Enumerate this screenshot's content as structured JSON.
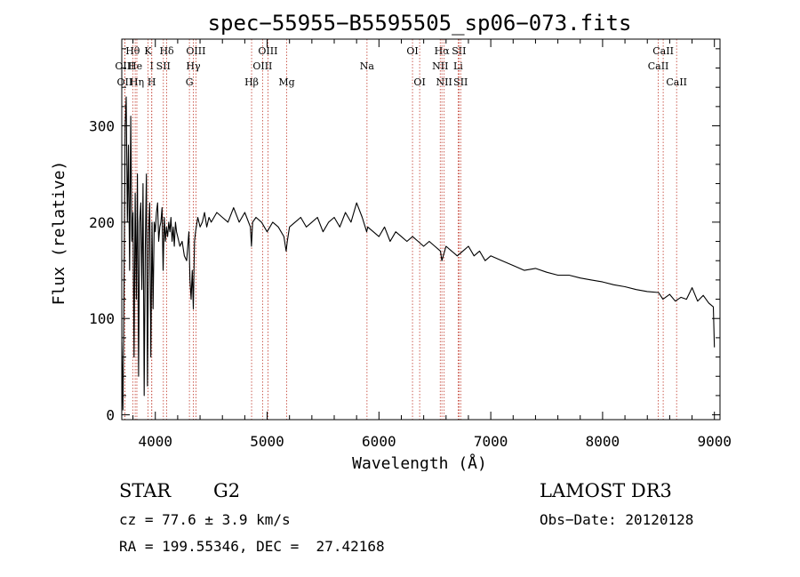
{
  "chart_data": {
    "type": "line",
    "title": "spec−55955−B5595505_sp06−073.fits",
    "xlabel": "Wavelength (Å)",
    "ylabel": "Flux (relative)",
    "xlim": [
      3700,
      9050
    ],
    "ylim": [
      -5,
      390
    ],
    "xticks": [
      4000,
      5000,
      6000,
      7000,
      8000,
      9000
    ],
    "yticks": [
      0,
      100,
      200,
      300
    ],
    "series": [
      {
        "name": "flux",
        "x": [
          3700,
          3710,
          3720,
          3730,
          3740,
          3750,
          3760,
          3770,
          3780,
          3790,
          3800,
          3810,
          3820,
          3830,
          3840,
          3850,
          3860,
          3870,
          3880,
          3890,
          3900,
          3910,
          3920,
          3930,
          3940,
          3950,
          3960,
          3970,
          3980,
          3990,
          4000,
          4010,
          4020,
          4030,
          4040,
          4050,
          4060,
          4070,
          4080,
          4090,
          4100,
          4110,
          4120,
          4130,
          4140,
          4150,
          4160,
          4170,
          4180,
          4190,
          4200,
          4220,
          4240,
          4260,
          4280,
          4300,
          4310,
          4320,
          4330,
          4340,
          4350,
          4360,
          4380,
          4400,
          4420,
          4440,
          4460,
          4480,
          4500,
          4550,
          4600,
          4650,
          4700,
          4750,
          4800,
          4850,
          4860,
          4870,
          4900,
          4950,
          5000,
          5050,
          5100,
          5150,
          5170,
          5180,
          5200,
          5250,
          5300,
          5350,
          5400,
          5450,
          5500,
          5550,
          5600,
          5650,
          5700,
          5750,
          5800,
          5850,
          5890,
          5900,
          5950,
          6000,
          6050,
          6100,
          6150,
          6200,
          6250,
          6300,
          6350,
          6400,
          6450,
          6500,
          6550,
          6563,
          6600,
          6650,
          6700,
          6750,
          6800,
          6850,
          6900,
          6950,
          7000,
          7100,
          7200,
          7300,
          7400,
          7500,
          7600,
          7700,
          7800,
          7900,
          8000,
          8100,
          8200,
          8300,
          8400,
          8500,
          8540,
          8600,
          8650,
          8700,
          8750,
          8800,
          8850,
          8900,
          8950,
          8990,
          9000
        ],
        "values": [
          75,
          5,
          130,
          300,
          330,
          200,
          280,
          150,
          310,
          180,
          210,
          60,
          230,
          120,
          250,
          40,
          200,
          220,
          130,
          240,
          20,
          170,
          250,
          30,
          190,
          220,
          60,
          200,
          110,
          200,
          190,
          210,
          220,
          180,
          195,
          200,
          215,
          150,
          205,
          180,
          195,
          185,
          200,
          190,
          205,
          180,
          195,
          175,
          200,
          190,
          185,
          175,
          180,
          165,
          160,
          190,
          140,
          120,
          150,
          110,
          180,
          190,
          205,
          195,
          200,
          210,
          195,
          205,
          200,
          210,
          205,
          200,
          215,
          200,
          210,
          195,
          175,
          200,
          205,
          200,
          190,
          200,
          195,
          185,
          170,
          180,
          195,
          200,
          205,
          195,
          200,
          205,
          190,
          200,
          205,
          195,
          210,
          200,
          220,
          205,
          190,
          195,
          190,
          185,
          195,
          180,
          190,
          185,
          180,
          185,
          180,
          175,
          180,
          175,
          170,
          160,
          175,
          170,
          165,
          170,
          175,
          165,
          170,
          160,
          165,
          160,
          155,
          150,
          152,
          148,
          145,
          145,
          142,
          140,
          138,
          135,
          133,
          130,
          128,
          127,
          120,
          125,
          118,
          122,
          120,
          132,
          118,
          124,
          116,
          112,
          70
        ]
      }
    ],
    "line_markers": [
      {
        "label": "OII",
        "wl": 3727,
        "row": 2
      },
      {
        "label": "OIII",
        "wl": 3727,
        "row": 1
      },
      {
        "label": "Hθ",
        "wl": 3798,
        "row": 0
      },
      {
        "label": "He",
        "wl": 3820,
        "row": 1
      },
      {
        "label": "Hη",
        "wl": 3835,
        "row": 2
      },
      {
        "label": "K",
        "wl": 3934,
        "row": 0
      },
      {
        "label": "I",
        "wl": 3968,
        "row": 1
      },
      {
        "label": "H",
        "wl": 3968,
        "row": 2
      },
      {
        "label": "SII",
        "wl": 4072,
        "row": 1
      },
      {
        "label": "Hδ",
        "wl": 4102,
        "row": 0
      },
      {
        "label": "OIII",
        "wl": 4363,
        "row": 0
      },
      {
        "label": "Hγ",
        "wl": 4340,
        "row": 1
      },
      {
        "label": "G",
        "wl": 4305,
        "row": 2
      },
      {
        "label": "Hβ",
        "wl": 4861,
        "row": 2
      },
      {
        "label": "OIII",
        "wl": 5007,
        "row": 0
      },
      {
        "label": "OIII",
        "wl": 4959,
        "row": 1
      },
      {
        "label": "Mg",
        "wl": 5175,
        "row": 2
      },
      {
        "label": "Na",
        "wl": 5893,
        "row": 1
      },
      {
        "label": "OI",
        "wl": 6300,
        "row": 0
      },
      {
        "label": "OI",
        "wl": 6364,
        "row": 2
      },
      {
        "label": "Hα",
        "wl": 6563,
        "row": 0
      },
      {
        "label": "NII",
        "wl": 6548,
        "row": 1
      },
      {
        "label": "NII",
        "wl": 6583,
        "row": 2
      },
      {
        "label": "SII",
        "wl": 6716,
        "row": 0
      },
      {
        "label": "Li",
        "wl": 6708,
        "row": 1
      },
      {
        "label": "SII",
        "wl": 6731,
        "row": 2
      },
      {
        "label": "CaII",
        "wl": 8542,
        "row": 0
      },
      {
        "label": "CaII",
        "wl": 8498,
        "row": 1
      },
      {
        "label": "CaII",
        "wl": 8662,
        "row": 2
      }
    ]
  },
  "info": {
    "object_class": "STAR",
    "subclass": "G2",
    "survey": "LAMOST DR3",
    "redshift": "cz = 77.6 ± 3.9 km/s",
    "obs_date": "Obs−Date: 20120128",
    "coords": "RA = 199.55346, DEC =  27.42168"
  }
}
